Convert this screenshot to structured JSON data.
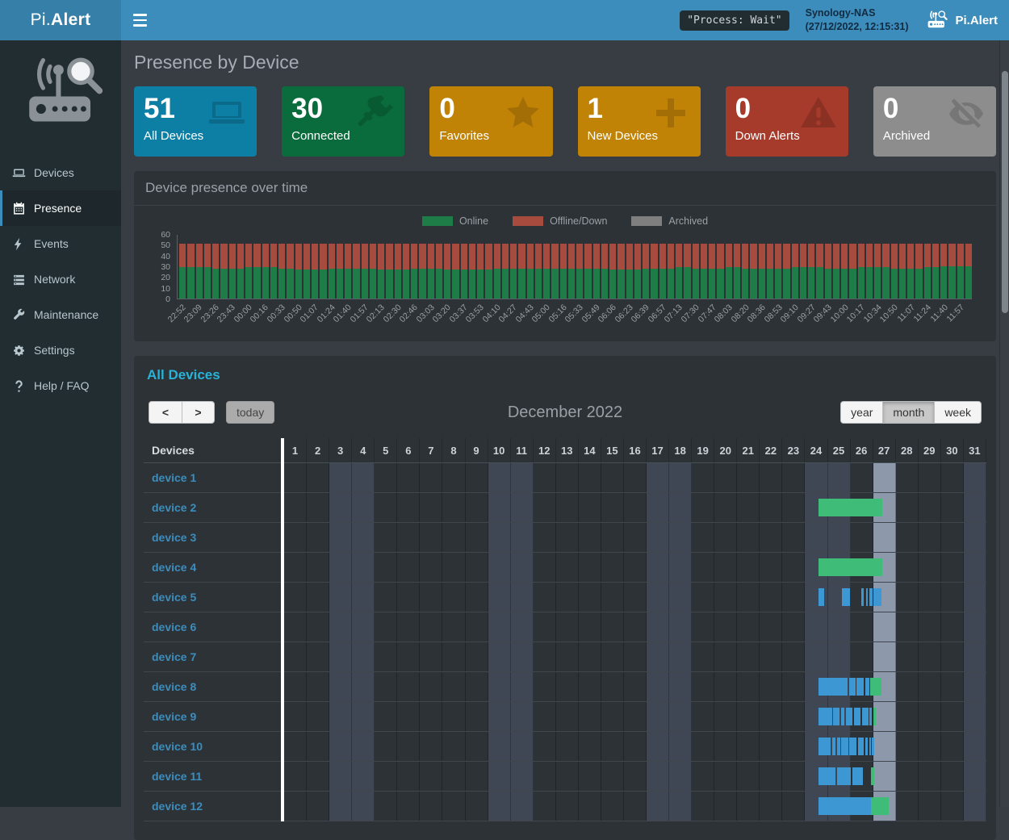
{
  "topbar": {
    "brand_left_regular": "Pi.",
    "brand_left_bold": "Alert",
    "process_badge": "\"Process: Wait\"",
    "host": "Synology-NAS",
    "timestamp": "(27/12/2022, 12:15:31)",
    "brand_right": "Pi.Alert"
  },
  "sidebar": {
    "items": [
      {
        "label": "Devices",
        "icon": "laptop-icon",
        "active": false
      },
      {
        "label": "Presence",
        "icon": "calendar-icon",
        "active": true
      },
      {
        "label": "Events",
        "icon": "bolt-icon",
        "active": false
      },
      {
        "label": "Network",
        "icon": "network-icon",
        "active": false
      },
      {
        "label": "Maintenance",
        "icon": "wrench-icon",
        "active": false
      },
      {
        "label": "Settings",
        "icon": "gear-icon",
        "active": false
      },
      {
        "label": "Help / FAQ",
        "icon": "question-icon",
        "active": false
      }
    ]
  },
  "page": {
    "title": "Presence by Device"
  },
  "cards": [
    {
      "value": "51",
      "label": "All Devices",
      "color": "#0e7fa4",
      "icon": "laptop-icon"
    },
    {
      "value": "30",
      "label": "Connected",
      "color": "#0a6c3c",
      "icon": "plug-icon"
    },
    {
      "value": "0",
      "label": "Favorites",
      "color": "#c18306",
      "icon": "star-icon"
    },
    {
      "value": "1",
      "label": "New Devices",
      "color": "#c18306",
      "icon": "plus-icon"
    },
    {
      "value": "0",
      "label": "Down Alerts",
      "color": "#a63b2c",
      "icon": "warning-icon"
    },
    {
      "value": "0",
      "label": "Archived",
      "color": "#8d8d8d",
      "icon": "eye-slash-icon"
    }
  ],
  "chart_panel": {
    "title": "Device presence over time",
    "legend": [
      {
        "label": "Online",
        "color": "#1e7c46"
      },
      {
        "label": "Offline/Down",
        "color": "#a64b3e"
      },
      {
        "label": "Archived",
        "color": "#7f7f7f"
      }
    ]
  },
  "chart_data": {
    "type": "bar",
    "stacked": true,
    "title": "Device presence over time",
    "xlabel": "",
    "ylabel": "",
    "ylim": [
      0,
      60
    ],
    "yticks": [
      60,
      50,
      40,
      30,
      20,
      10,
      0
    ],
    "grid": false,
    "legend_position": "top",
    "bars_per_label": 2,
    "categories": [
      "22:52",
      "23:09",
      "23:26",
      "23:43",
      "00:00",
      "00:16",
      "00:33",
      "00:50",
      "01:07",
      "01:24",
      "01:40",
      "01:57",
      "02:13",
      "02:30",
      "02:46",
      "03:03",
      "03:20",
      "03:37",
      "03:53",
      "04:10",
      "04:27",
      "04:43",
      "05:00",
      "05:16",
      "05:33",
      "05:49",
      "06:06",
      "06:23",
      "06:39",
      "06:57",
      "07:13",
      "07:30",
      "07:47",
      "08:03",
      "08:20",
      "08:36",
      "08:53",
      "09:10",
      "09:27",
      "09:43",
      "10:00",
      "10:17",
      "10:34",
      "10:50",
      "11:07",
      "11:24",
      "11:40",
      "11:57"
    ],
    "series": [
      {
        "name": "Online",
        "color": "#1e7c46",
        "values": [
          29,
          29,
          28,
          28,
          29,
          29,
          28,
          27,
          27,
          28,
          28,
          28,
          27,
          27,
          28,
          28,
          27,
          27,
          27,
          28,
          28,
          28,
          28,
          28,
          28,
          28,
          27,
          27,
          28,
          28,
          29,
          28,
          28,
          29,
          28,
          28,
          28,
          29,
          29,
          28,
          28,
          29,
          29,
          28,
          28,
          29,
          30,
          30
        ]
      },
      {
        "name": "Offline/Down",
        "color": "#a64b3e",
        "values": [
          22,
          22,
          23,
          23,
          22,
          22,
          23,
          24,
          24,
          23,
          23,
          23,
          24,
          24,
          23,
          23,
          24,
          24,
          24,
          23,
          23,
          23,
          23,
          23,
          23,
          23,
          24,
          24,
          23,
          23,
          22,
          23,
          23,
          22,
          23,
          23,
          23,
          22,
          22,
          23,
          23,
          22,
          22,
          23,
          23,
          22,
          21,
          21
        ]
      },
      {
        "name": "Archived",
        "color": "#7f7f7f",
        "values": [
          0,
          0,
          0,
          0,
          0,
          0,
          0,
          0,
          0,
          0,
          0,
          0,
          0,
          0,
          0,
          0,
          0,
          0,
          0,
          0,
          0,
          0,
          0,
          0,
          0,
          0,
          0,
          0,
          0,
          0,
          0,
          0,
          0,
          0,
          0,
          0,
          0,
          0,
          0,
          0,
          0,
          0,
          0,
          0,
          0,
          0,
          0,
          0
        ]
      }
    ]
  },
  "calendar": {
    "section_title": "All Devices",
    "prev_label": "<",
    "next_label": ">",
    "today_label": "today",
    "title": "December 2022",
    "views": [
      "year",
      "month",
      "week"
    ],
    "active_view": "month",
    "col_header": "Devices",
    "num_days": 31,
    "weekend_days": [
      3,
      4,
      10,
      11,
      17,
      18,
      24,
      25,
      31
    ],
    "today_day": 27,
    "colors": {
      "connected": "#3d97d3",
      "online": "#3fbc77"
    },
    "rows": [
      {
        "name": "device 1",
        "segments": []
      },
      {
        "name": "device 2",
        "segments": [
          [
            "online",
            23.58,
            26.42
          ]
        ]
      },
      {
        "name": "device 3",
        "segments": []
      },
      {
        "name": "device 4",
        "segments": [
          [
            "online",
            23.58,
            26.42
          ]
        ]
      },
      {
        "name": "device 5",
        "segments": [
          [
            "connected",
            23.6,
            23.84
          ],
          [
            "connected",
            24.62,
            24.98
          ],
          [
            "connected",
            25.48,
            25.6
          ],
          [
            "connected",
            25.68,
            25.78
          ],
          [
            "connected",
            25.84,
            25.98
          ],
          [
            "connected",
            26.02,
            26.36
          ]
        ]
      },
      {
        "name": "device 6",
        "segments": []
      },
      {
        "name": "device 7",
        "segments": []
      },
      {
        "name": "device 8",
        "segments": [
          [
            "connected",
            23.6,
            24.88
          ],
          [
            "connected",
            24.94,
            25.22
          ],
          [
            "connected",
            25.28,
            25.58
          ],
          [
            "connected",
            25.64,
            25.84
          ],
          [
            "online",
            25.88,
            26.36
          ]
        ]
      },
      {
        "name": "device 9",
        "segments": [
          [
            "connected",
            23.6,
            24.18
          ],
          [
            "connected",
            24.24,
            24.52
          ],
          [
            "connected",
            24.58,
            24.74
          ],
          [
            "connected",
            24.8,
            25.1
          ],
          [
            "connected",
            25.16,
            25.44
          ],
          [
            "connected",
            25.5,
            25.8
          ],
          [
            "connected",
            25.84,
            25.94
          ],
          [
            "online",
            26.0,
            26.12
          ]
        ]
      },
      {
        "name": "device 10",
        "segments": [
          [
            "connected",
            23.6,
            24.14
          ],
          [
            "connected",
            24.2,
            24.34
          ],
          [
            "connected",
            24.4,
            24.54
          ],
          [
            "connected",
            24.6,
            24.9
          ],
          [
            "connected",
            24.96,
            25.28
          ],
          [
            "connected",
            25.34,
            25.6
          ],
          [
            "connected",
            25.66,
            25.78
          ],
          [
            "connected",
            25.84,
            25.9
          ],
          [
            "connected",
            25.95,
            26.04
          ]
        ]
      },
      {
        "name": "device 11",
        "segments": [
          [
            "connected",
            23.6,
            24.34
          ],
          [
            "connected",
            24.4,
            25.02
          ],
          [
            "connected",
            25.08,
            25.54
          ],
          [
            "online",
            25.9,
            26.06
          ]
        ]
      },
      {
        "name": "device 12",
        "segments": [
          [
            "connected",
            23.6,
            25.9
          ],
          [
            "online",
            25.9,
            26.68
          ]
        ]
      }
    ]
  }
}
